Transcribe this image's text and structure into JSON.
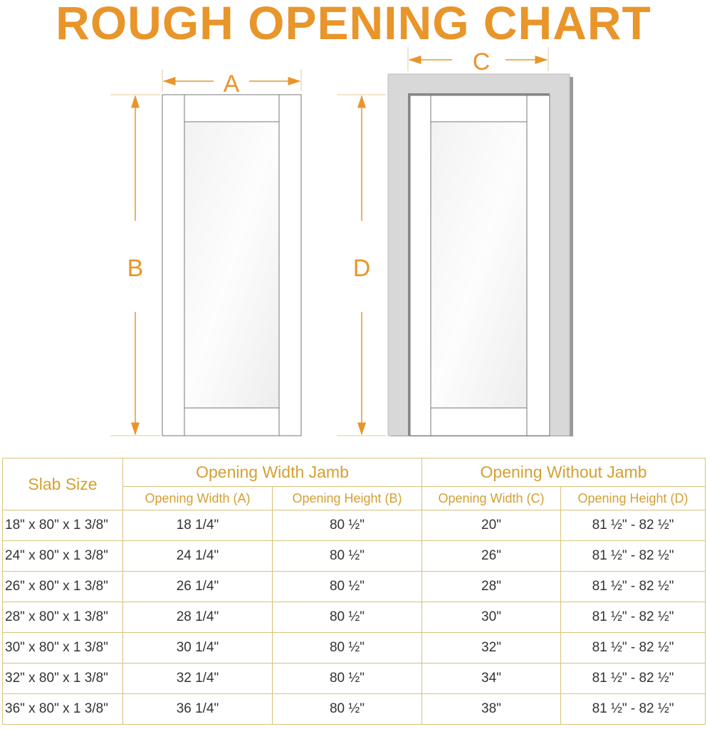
{
  "title": "ROUGH OPENING CHART",
  "diagram": {
    "labels": {
      "a": "A",
      "b": "B",
      "c": "C",
      "d": "D"
    },
    "colors": {
      "accent": "#E8952A",
      "frame": "#D8D8D8",
      "door": "#FFFFFF"
    }
  },
  "table": {
    "slab_header": "Slab Size",
    "group_headers": [
      "Opening Width Jamb",
      "Opening Without Jamb"
    ],
    "sub_headers": [
      "Opening Width (A)",
      "Opening Height (B)",
      "Opening Width (C)",
      "Opening Height (D)"
    ],
    "rows": [
      [
        "18\" x 80\" x 1 3/8\"",
        "18 1/4\"",
        "80 ½\"",
        "20\"",
        "81 ½\" - 82 ½\""
      ],
      [
        "24\" x 80\" x 1 3/8\"",
        "24 1/4\"",
        "80 ½\"",
        "26\"",
        "81 ½\" - 82 ½\""
      ],
      [
        "26\" x 80\" x 1 3/8\"",
        "26 1/4\"",
        "80 ½\"",
        "28\"",
        "81 ½\" - 82 ½\""
      ],
      [
        "28\" x 80\" x 1 3/8\"",
        "28 1/4\"",
        "80 ½\"",
        "30\"",
        "81 ½\" - 82 ½\""
      ],
      [
        "30\" x 80\" x 1 3/8\"",
        "30 1/4\"",
        "80 ½\"",
        "32\"",
        "81 ½\" - 82 ½\""
      ],
      [
        "32\" x 80\" x 1 3/8\"",
        "32 1/4\"",
        "80 ½\"",
        "34\"",
        "81 ½\" - 82 ½\""
      ],
      [
        "36\" x 80\" x 1 3/8\"",
        "36 1/4\"",
        "80 ½\"",
        "38\"",
        "81 ½\" - 82 ½\""
      ]
    ]
  }
}
